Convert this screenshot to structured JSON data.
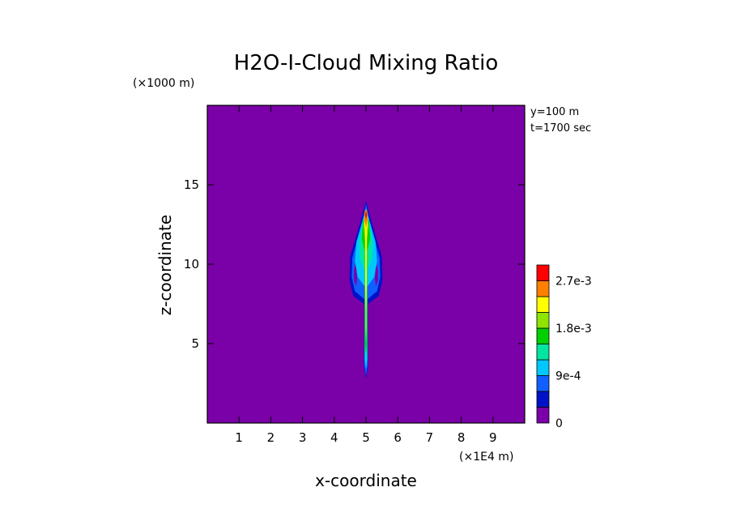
{
  "chart_data": {
    "type": "heatmap",
    "title": "H2O-I-Cloud Mixing Ratio",
    "xlabel": "x-coordinate",
    "ylabel": "z-coordinate",
    "x_unit": "(×1E4 m)",
    "y_unit": "(×1000 m)",
    "annotations": [
      "y=100 m",
      "t=1700 sec"
    ],
    "xlim": [
      0,
      10
    ],
    "ylim": [
      0,
      20
    ],
    "x_ticks": [
      1,
      2,
      3,
      4,
      5,
      6,
      7,
      8,
      9
    ],
    "y_ticks": [
      5,
      10,
      15
    ],
    "background_color": "#7a00a8",
    "colorbar": {
      "levels": [
        0,
        0.0003,
        0.0006,
        0.0009,
        0.0012,
        0.0015,
        0.0018,
        0.0021,
        0.0024,
        0.0027,
        0.003
      ],
      "colors": [
        "#7a00a8",
        "#0012c8",
        "#1060ff",
        "#00c8ff",
        "#00e6a0",
        "#00d000",
        "#8ee600",
        "#ffff00",
        "#ff8000",
        "#ff0000"
      ],
      "tick_labels": [
        {
          "label": "0",
          "value": 0
        },
        {
          "label": "9e-4",
          "value": 0.0009
        },
        {
          "label": "1.8e-3",
          "value": 0.0018
        },
        {
          "label": "2.7e-3",
          "value": 0.0027
        }
      ]
    },
    "contours": [
      {
        "level": 0.0003,
        "color": "#0012c8",
        "points": [
          [
            5.0,
            2.8
          ],
          [
            5.06,
            3.5
          ],
          [
            5.06,
            7.5
          ],
          [
            5.4,
            8.0
          ],
          [
            5.52,
            9.0
          ],
          [
            5.5,
            10.5
          ],
          [
            5.3,
            11.8
          ],
          [
            5.1,
            13.2
          ],
          [
            5.0,
            14.0
          ],
          [
            4.9,
            13.2
          ],
          [
            4.7,
            11.8
          ],
          [
            4.5,
            10.5
          ],
          [
            4.48,
            9.0
          ],
          [
            4.6,
            8.0
          ],
          [
            4.94,
            7.5
          ],
          [
            4.94,
            3.5
          ]
        ]
      },
      {
        "level": 0.0006,
        "color": "#1060ff",
        "points": [
          [
            5.0,
            3.0
          ],
          [
            5.05,
            3.6
          ],
          [
            5.05,
            7.8
          ],
          [
            5.35,
            8.3
          ],
          [
            5.45,
            9.2
          ],
          [
            5.43,
            10.4
          ],
          [
            5.25,
            11.7
          ],
          [
            5.08,
            13.0
          ],
          [
            5.0,
            13.8
          ],
          [
            4.92,
            13.0
          ],
          [
            4.75,
            11.7
          ],
          [
            4.57,
            10.4
          ],
          [
            4.55,
            9.2
          ],
          [
            4.65,
            8.3
          ],
          [
            4.95,
            7.8
          ],
          [
            4.95,
            3.6
          ]
        ]
      },
      {
        "level": 0.0009,
        "color": "#00c8ff",
        "points": [
          [
            5.0,
            3.4
          ],
          [
            5.04,
            4.0
          ],
          [
            5.04,
            8.6
          ],
          [
            5.26,
            9.2
          ],
          [
            5.35,
            10.2
          ],
          [
            5.3,
            11.4
          ],
          [
            5.1,
            12.8
          ],
          [
            5.0,
            13.5
          ],
          [
            4.9,
            12.8
          ],
          [
            4.7,
            11.4
          ],
          [
            4.65,
            10.2
          ],
          [
            4.74,
            9.2
          ],
          [
            4.96,
            8.6
          ],
          [
            4.96,
            4.0
          ]
        ]
      },
      {
        "level": 0.0012,
        "color": "#00e6a0",
        "points": [
          [
            5.0,
            3.8
          ],
          [
            5.035,
            4.5
          ],
          [
            5.035,
            9.6
          ],
          [
            5.2,
            10.4
          ],
          [
            5.22,
            11.4
          ],
          [
            5.1,
            12.6
          ],
          [
            5.0,
            13.3
          ],
          [
            4.9,
            12.6
          ],
          [
            4.78,
            11.4
          ],
          [
            4.8,
            10.4
          ],
          [
            4.965,
            9.6
          ],
          [
            4.965,
            4.5
          ]
        ]
      },
      {
        "level": 0.0015,
        "color": "#00d000",
        "points": [
          [
            5.0,
            4.3
          ],
          [
            5.03,
            5.0
          ],
          [
            5.03,
            10.8
          ],
          [
            5.13,
            11.6
          ],
          [
            5.1,
            12.7
          ],
          [
            5.0,
            13.2
          ],
          [
            4.9,
            12.7
          ],
          [
            4.87,
            11.6
          ],
          [
            4.97,
            10.8
          ],
          [
            4.97,
            5.0
          ]
        ]
      },
      {
        "level": 0.0018,
        "color": "#8ee600",
        "points": [
          [
            5.0,
            5.0
          ],
          [
            5.025,
            6.0
          ],
          [
            5.03,
            11.5
          ],
          [
            5.08,
            12.4
          ],
          [
            5.05,
            13.0
          ],
          [
            5.0,
            13.3
          ],
          [
            4.95,
            13.0
          ],
          [
            4.92,
            12.4
          ],
          [
            4.97,
            11.5
          ],
          [
            4.975,
            6.0
          ]
        ]
      },
      {
        "level": 0.0021,
        "color": "#ffff00",
        "points": [
          [
            5.0,
            7.0
          ],
          [
            5.02,
            8.5
          ],
          [
            5.03,
            12.2
          ],
          [
            5.06,
            12.9
          ],
          [
            5.0,
            13.3
          ],
          [
            4.94,
            12.9
          ],
          [
            4.97,
            12.2
          ],
          [
            4.98,
            8.5
          ]
        ]
      },
      {
        "level": 0.0024,
        "color": "#ff8000",
        "points": [
          [
            5.0,
            12.3
          ],
          [
            5.05,
            12.8
          ],
          [
            5.04,
            13.3
          ],
          [
            5.0,
            13.5
          ],
          [
            4.96,
            13.3
          ],
          [
            4.95,
            12.8
          ]
        ]
      },
      {
        "level": 0.0027,
        "color": "#ff0000",
        "points": [
          [
            5.0,
            12.8
          ],
          [
            5.03,
            13.1
          ],
          [
            5.0,
            13.35
          ],
          [
            4.97,
            13.1
          ]
        ]
      }
    ],
    "holes": [
      {
        "color": "#7a00a8",
        "points": [
          [
            4.69,
            8.6
          ],
          [
            4.72,
            9.1
          ],
          [
            4.7,
            9.7
          ],
          [
            4.66,
            10.0
          ],
          [
            4.62,
            9.6
          ],
          [
            4.62,
            9.0
          ]
        ]
      },
      {
        "color": "#7a00a8",
        "points": [
          [
            5.31,
            8.6
          ],
          [
            5.28,
            9.1
          ],
          [
            5.3,
            9.7
          ],
          [
            5.34,
            10.0
          ],
          [
            5.38,
            9.6
          ],
          [
            5.38,
            9.0
          ]
        ]
      }
    ]
  }
}
